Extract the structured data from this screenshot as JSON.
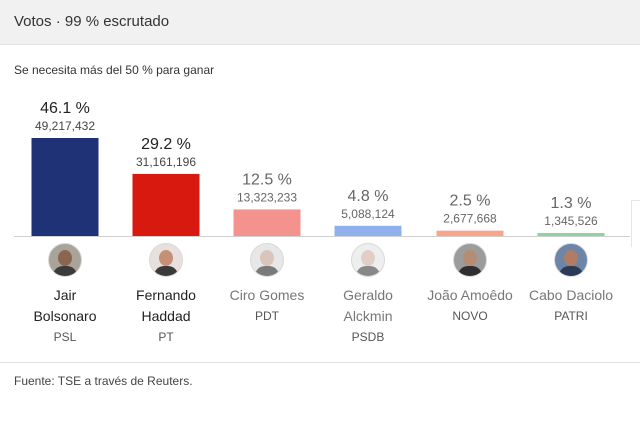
{
  "header": {
    "title": "Votos · 99 % escrutado"
  },
  "note": "Se necesita más del 50 % para ganar",
  "chart_data": {
    "type": "bar",
    "categories": [
      "Jair Bolsonaro",
      "Fernando Haddad",
      "Ciro Gomes",
      "Geraldo Alckmin",
      "João Amoêdo",
      "Cabo Daciolo"
    ],
    "values": [
      46.1,
      29.2,
      12.5,
      4.8,
      2.5,
      1.3
    ],
    "value_labels": [
      "46.1 %",
      "29.2 %",
      "12.5 %",
      "4.8 %",
      "2.5 %",
      "1.3 %"
    ],
    "vote_labels": [
      "49,217,432",
      "31,161,196",
      "13,323,233",
      "5,088,124",
      "2,677,668",
      "1,345,526"
    ],
    "colors": [
      "#1f3275",
      "#d7190f",
      "#f4928d",
      "#8fb0ec",
      "#f8a58a",
      "#8fd49c"
    ],
    "ylim": [
      0,
      50
    ]
  },
  "candidates": [
    {
      "line1": "Jair",
      "line2": "Bolsonaro",
      "party": "PSL",
      "highlight": true,
      "skin": "#8a6650",
      "shirt": "#3b3b3b",
      "bg": "#aaa39a"
    },
    {
      "line1": "Fernando",
      "line2": "Haddad",
      "party": "PT",
      "highlight": true,
      "skin": "#c58f78",
      "shirt": "#3a3a3a",
      "bg": "#e8e0dc"
    },
    {
      "line1": "Ciro Gomes",
      "line2": "",
      "party": "PDT",
      "highlight": false,
      "skin": "#d8c6bb",
      "shirt": "#7a7a7a",
      "bg": "#e7e7e7"
    },
    {
      "line1": "Geraldo",
      "line2": "Alckmin",
      "party": "PSDB",
      "highlight": false,
      "skin": "#e1cfc5",
      "shirt": "#888888",
      "bg": "#eeeeee"
    },
    {
      "line1": "João Amoêdo",
      "line2": "",
      "party": "NOVO",
      "highlight": false,
      "skin": "#b58d74",
      "shirt": "#2f2f2f",
      "bg": "#9c9c9c"
    },
    {
      "line1": "Cabo Daciolo",
      "line2": "",
      "party": "PATRI",
      "highlight": false,
      "skin": "#b07c63",
      "shirt": "#2b3b55",
      "bg": "#6d86a8"
    }
  ],
  "source": "Fuente: TSE a través de Reuters."
}
